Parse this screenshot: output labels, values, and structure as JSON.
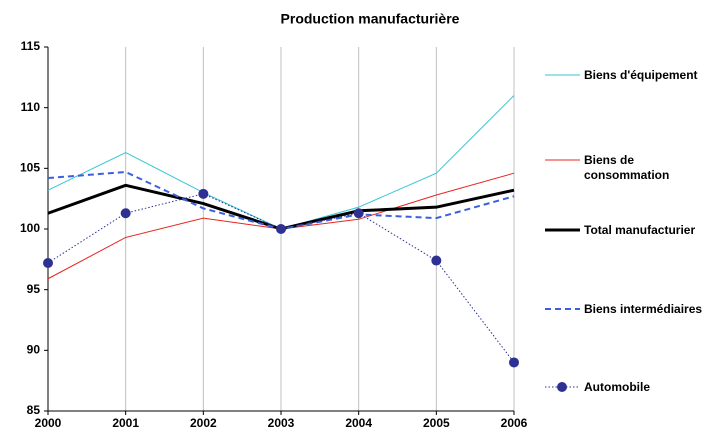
{
  "chart_data": {
    "type": "line",
    "title": "Production manufacturière",
    "categories": [
      "2000",
      "2001",
      "2002",
      "2003",
      "2004",
      "2005",
      "2006"
    ],
    "ylim": [
      85,
      115
    ],
    "yticks": [
      85,
      90,
      95,
      100,
      105,
      110,
      115
    ],
    "grid": "vertical",
    "series": [
      {
        "name": "Biens d'équipement",
        "color": "#33c6d6",
        "line_width": 1,
        "dash": "solid",
        "marker": "none",
        "values": [
          103.2,
          106.3,
          103.0,
          100,
          101.8,
          104.6,
          111.0
        ]
      },
      {
        "name": "Biens de consommation",
        "color": "#e8251f",
        "line_width": 1,
        "dash": "solid",
        "marker": "none",
        "values": [
          95.9,
          99.3,
          100.9,
          100,
          100.8,
          102.8,
          104.6
        ]
      },
      {
        "name": "Total manufacturier",
        "color": "#000000",
        "line_width": 3,
        "dash": "solid",
        "marker": "none",
        "values": [
          101.3,
          103.6,
          102.1,
          100,
          101.5,
          101.8,
          103.2
        ]
      },
      {
        "name": "Biens intermédiaires",
        "color": "#3a5fe0",
        "line_width": 2,
        "dash": "dashed",
        "marker": "none",
        "values": [
          104.2,
          104.7,
          101.7,
          100,
          101.2,
          100.9,
          102.7
        ]
      },
      {
        "name": "Automobile",
        "color": "#2e3192",
        "line_width": 1,
        "dash": "dotted",
        "marker": "circle",
        "values": [
          97.2,
          101.3,
          102.9,
          100,
          101.3,
          97.4,
          89.0
        ]
      }
    ]
  }
}
